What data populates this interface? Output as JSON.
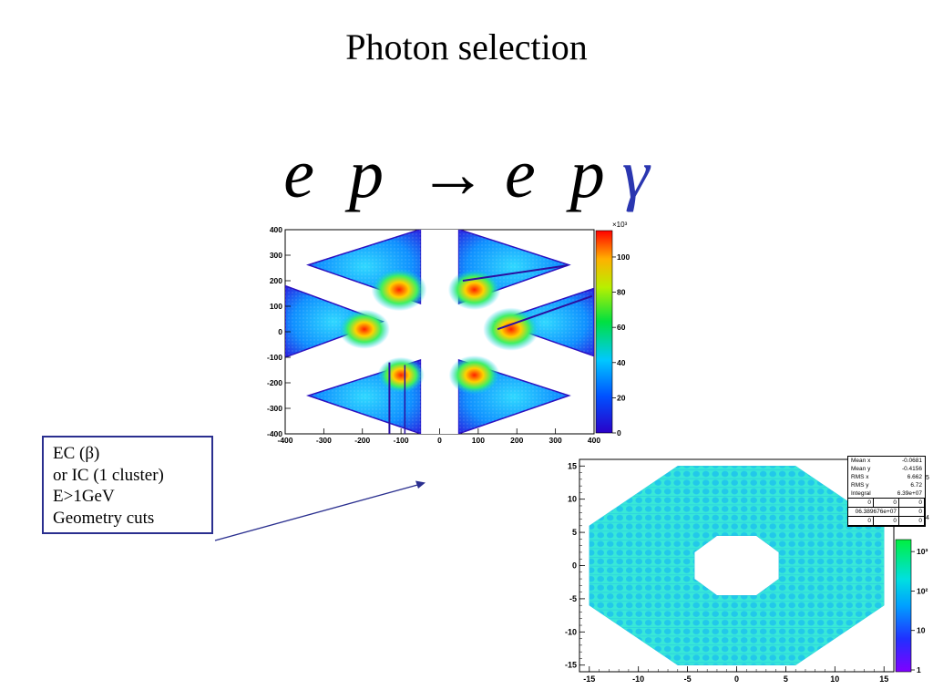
{
  "slide": {
    "title": "Photon selection",
    "equation": {
      "lhs_1": "e",
      "lhs_2": "p",
      "arrow": "→",
      "rhs_1": "e",
      "rhs_2": "p",
      "rhs_3": "γ"
    },
    "cut_box": {
      "lines": [
        "EC (β)",
        "or IC (1 cluster)",
        "E>1GeV",
        "Geometry cuts"
      ]
    }
  },
  "chart_data": [
    {
      "type": "heatmap",
      "title": "",
      "xlabel": "",
      "ylabel": "",
      "xlim": [
        -400,
        400
      ],
      "ylim": [
        -400,
        400
      ],
      "x_ticks": [
        "-400",
        "-300",
        "-200",
        "-100",
        "0",
        "100",
        "200",
        "300",
        "400"
      ],
      "y_ticks": [
        "400",
        "300",
        "200",
        "100",
        "0",
        "-100",
        "-200",
        "-300",
        "-400"
      ],
      "z_range": [
        0,
        115000
      ],
      "z_ticks": [
        "0",
        "20",
        "40",
        "60",
        "80",
        "100"
      ],
      "z_multiplier": "×10³",
      "colors": {
        "low": "#1a00d6",
        "mid": "#00e600",
        "high": "#ff0000"
      },
      "description_sectors": 6,
      "hot_spots": [
        {
          "x": -105,
          "y": 165,
          "value": 110
        },
        {
          "x": 90,
          "y": 165,
          "value": 100
        },
        {
          "x": -195,
          "y": 10,
          "value": 95
        },
        {
          "x": 185,
          "y": 10,
          "value": 112
        },
        {
          "x": -100,
          "y": -170,
          "value": 80
        },
        {
          "x": 90,
          "y": -170,
          "value": 95
        }
      ]
    },
    {
      "type": "heatmap",
      "title": "",
      "xlabel": "",
      "ylabel": "",
      "xlim": [
        -16,
        16
      ],
      "ylim": [
        -16,
        16
      ],
      "x_ticks": [
        "-15",
        "-10",
        "-5",
        "0",
        "5",
        "10",
        "15"
      ],
      "y_ticks": [
        "15",
        "10",
        "5",
        "0",
        "-5",
        "-10",
        "-15"
      ],
      "z_scale": "log",
      "z_ticks": [
        "1",
        "10",
        "10²",
        "10³"
      ],
      "z_axis_overflow_fragments": [
        "5",
        "4"
      ],
      "colors": {
        "low": "#7a00ff",
        "mid": "#00ddee",
        "high": "#00ee44"
      },
      "stats": {
        "rows": [
          {
            "label": "Mean x",
            "value": "-0.0681"
          },
          {
            "label": "Mean y",
            "value": "-0.4156"
          },
          {
            "label": "RMS x",
            "value": "6.662"
          },
          {
            "label": "RMS y",
            "value": "6.72"
          },
          {
            "label": "Integral",
            "value": "6.39e+07"
          }
        ],
        "grid": [
          [
            "0",
            "0",
            "0"
          ],
          [
            "06.389676e+07",
            "0"
          ],
          [
            "0",
            "0",
            "0"
          ]
        ]
      }
    }
  ]
}
